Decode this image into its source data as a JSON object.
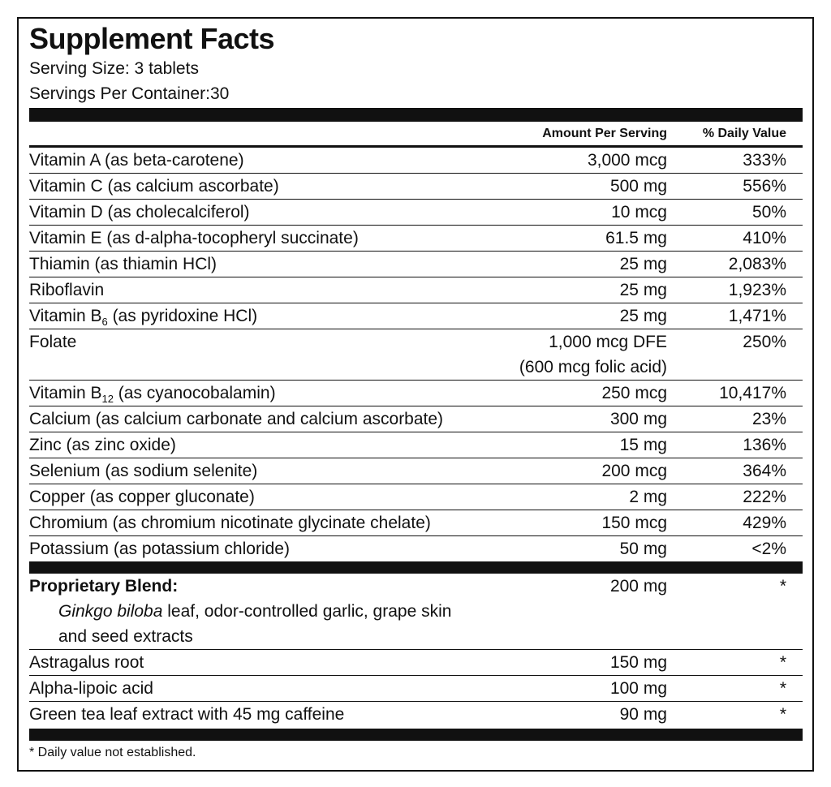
{
  "title": "Supplement Facts",
  "serving_size": "Serving Size: 3 tablets",
  "servings_per_container": "Servings Per Container:30",
  "header": {
    "amount": "Amount Per Serving",
    "daily_value": "% Daily Value"
  },
  "nutrients": [
    {
      "name": "Vitamin A (as beta-carotene)",
      "amount": "3,000 mcg",
      "daily_value": "333%"
    },
    {
      "name": "Vitamin C (as calcium ascorbate)",
      "amount": "500 mg",
      "daily_value": "556%"
    },
    {
      "name": "Vitamin D (as cholecalciferol)",
      "amount": "10 mcg",
      "daily_value": "50%"
    },
    {
      "name": "Vitamin E (as d-alpha-tocopheryl succinate)",
      "amount": "61.5 mg",
      "daily_value": "410%"
    },
    {
      "name": "Thiamin (as thiamin HCl)",
      "amount": "25 mg",
      "daily_value": "2,083%"
    },
    {
      "name": "Riboflavin",
      "amount": "25 mg",
      "daily_value": "1,923%"
    },
    {
      "name": "Vitamin B",
      "subscript": "6",
      "name_rest": " (as pyridoxine HCl)",
      "amount": "25 mg",
      "daily_value": "1,471%"
    },
    {
      "name": "Folate",
      "amount": "1,000 mcg DFE",
      "amount_note": "(600 mcg folic acid)",
      "daily_value": "250%"
    },
    {
      "name": "Vitamin B",
      "subscript": "12",
      "name_rest": " (as cyanocobalamin)",
      "amount": "250 mcg",
      "daily_value": "10,417%"
    },
    {
      "name": "Calcium (as calcium carbonate and calcium ascorbate)",
      "amount": "300 mg",
      "daily_value": "23%"
    },
    {
      "name": "Zinc (as zinc oxide)",
      "amount": "15 mg",
      "daily_value": "136%"
    },
    {
      "name": "Selenium (as sodium selenite)",
      "amount": "200 mcg",
      "daily_value": "364%"
    },
    {
      "name": "Copper (as copper gluconate)",
      "amount": "2 mg",
      "daily_value": "222%"
    },
    {
      "name": "Chromium (as chromium nicotinate glycinate chelate)",
      "amount": "150 mcg",
      "daily_value": "429%"
    },
    {
      "name": "Potassium (as potassium chloride)",
      "amount": "50 mg",
      "daily_value": "<2%"
    }
  ],
  "blend": {
    "name": "Proprietary Blend:",
    "amount": "200 mg",
    "daily_value": "*",
    "description_italic": "Ginkgo biloba",
    "description": " leaf, odor-controlled garlic, grape skin and seed extracts"
  },
  "other": [
    {
      "name": "Astragalus root",
      "amount": "150 mg",
      "daily_value": "*"
    },
    {
      "name": "Alpha-lipoic acid",
      "amount": "100 mg",
      "daily_value": "*"
    },
    {
      "name": "Green tea leaf extract with 45 mg caffeine",
      "amount": "90 mg",
      "daily_value": "*"
    }
  ],
  "footnote": "* Daily value not established."
}
